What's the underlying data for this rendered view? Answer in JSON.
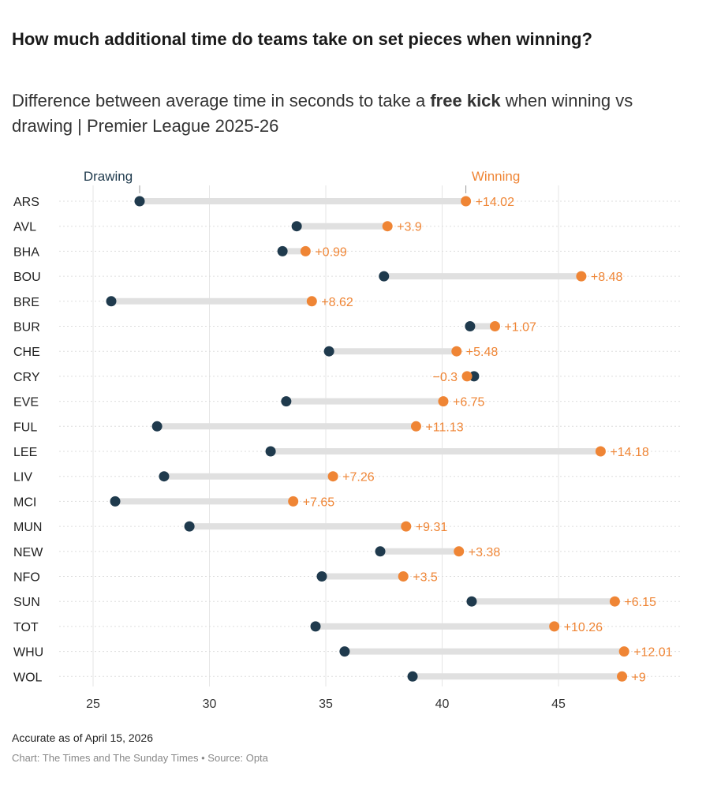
{
  "title": "How much additional time do teams take on set pieces when winning?",
  "subtitle_pre": "Difference between average time in seconds to take a ",
  "subtitle_bold": "free kick",
  "subtitle_post": " when winning vs drawing | Premier League 2025-26",
  "note": "Accurate as of April 15, 2026",
  "source": "Chart: The Times and The Sunday Times • Source: Opta",
  "chart_data": {
    "type": "dumbbell",
    "xlim": [
      23.5,
      50
    ],
    "xticks": [
      25,
      30,
      35,
      40,
      45
    ],
    "grid": true,
    "legend": [
      "Drawing",
      "Winning"
    ],
    "colors": {
      "Drawing": "#1f3a4d",
      "Winning": "#ef8535",
      "connector": "#e0e0e0"
    },
    "categories": [
      "ARS",
      "AVL",
      "BHA",
      "BOU",
      "BRE",
      "BUR",
      "CHE",
      "CRY",
      "EVE",
      "FUL",
      "LEE",
      "LIV",
      "MCI",
      "MUN",
      "NEW",
      "NFO",
      "SUN",
      "TOT",
      "WHU",
      "WOL"
    ],
    "series": [
      {
        "name": "Drawing",
        "values": [
          27.0,
          33.75,
          33.14,
          37.5,
          25.78,
          41.2,
          35.14,
          41.37,
          33.3,
          27.75,
          32.63,
          28.05,
          25.95,
          29.14,
          37.34,
          34.83,
          41.27,
          34.56,
          35.81,
          38.73
        ]
      },
      {
        "name": "Winning",
        "values": [
          41.02,
          37.65,
          34.13,
          45.98,
          34.4,
          42.27,
          40.62,
          41.07,
          40.05,
          38.88,
          46.81,
          35.31,
          33.6,
          38.45,
          40.72,
          38.33,
          47.42,
          44.82,
          47.82,
          47.73
        ]
      }
    ],
    "labels": [
      "+14.02",
      "+3.9",
      "+0.99",
      "+8.48",
      "+8.62",
      "+1.07",
      "+5.48",
      "−0.3",
      "+6.75",
      "+11.13",
      "+14.18",
      "+7.26",
      "+7.65",
      "+9.31",
      "+3.38",
      "+3.5",
      "+6.15",
      "+10.26",
      "+12.01",
      "+9"
    ]
  }
}
